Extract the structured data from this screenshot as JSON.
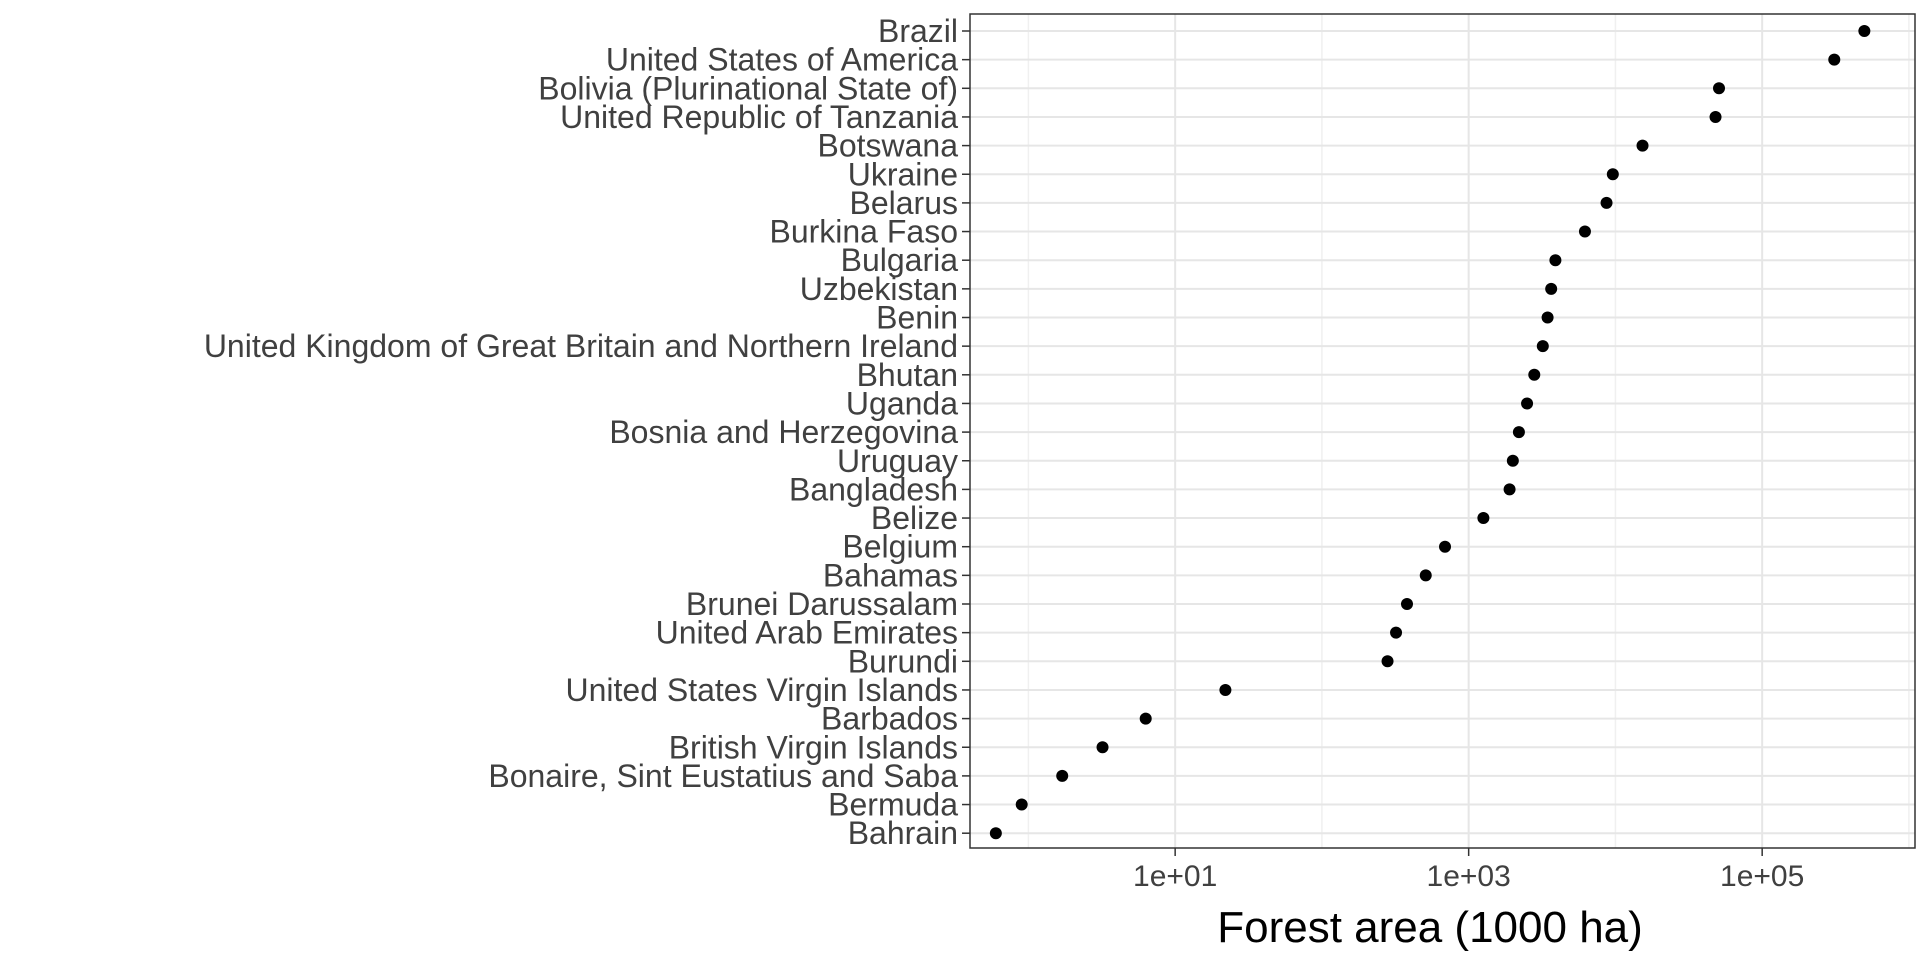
{
  "chart_data": {
    "type": "scatter",
    "title": "",
    "xlabel": "Forest area (1000 ha)",
    "ylabel": "",
    "x_scale": "log10",
    "xlim": [
      0.4,
      1100000
    ],
    "x_ticks": [
      10,
      1000,
      100000
    ],
    "x_tick_labels": [
      "1e+01",
      "1e+03",
      "1e+05"
    ],
    "grid": true,
    "legend": "none",
    "point_color": "#000000",
    "categories": [
      "Brazil",
      "United States of America",
      "Bolivia (Plurinational State of)",
      "United Republic of Tanzania",
      "Botswana",
      "Ukraine",
      "Belarus",
      "Burkina Faso",
      "Bulgaria",
      "Uzbekistan",
      "Benin",
      "United Kingdom of Great Britain and Northern Ireland",
      "Bhutan",
      "Uganda",
      "Bosnia and Herzegovina",
      "Uruguay",
      "Bangladesh",
      "Belize",
      "Belgium",
      "Bahamas",
      "Brunei Darussalam",
      "United Arab Emirates",
      "Burundi",
      "United States Virgin Islands",
      "Barbados",
      "British Virgin Islands",
      "Bonaire, Sint Eustatius and Saba",
      "Bermuda",
      "Bahrain"
    ],
    "values": [
      497000,
      310000,
      50800,
      48100,
      15300,
      9600,
      8700,
      6200,
      3900,
      3650,
      3450,
      3200,
      2800,
      2500,
      2200,
      2000,
      1900,
      1260,
      690,
      510,
      380,
      320,
      280,
      22,
      6.3,
      3.2,
      1.7,
      0.9,
      0.6
    ]
  }
}
